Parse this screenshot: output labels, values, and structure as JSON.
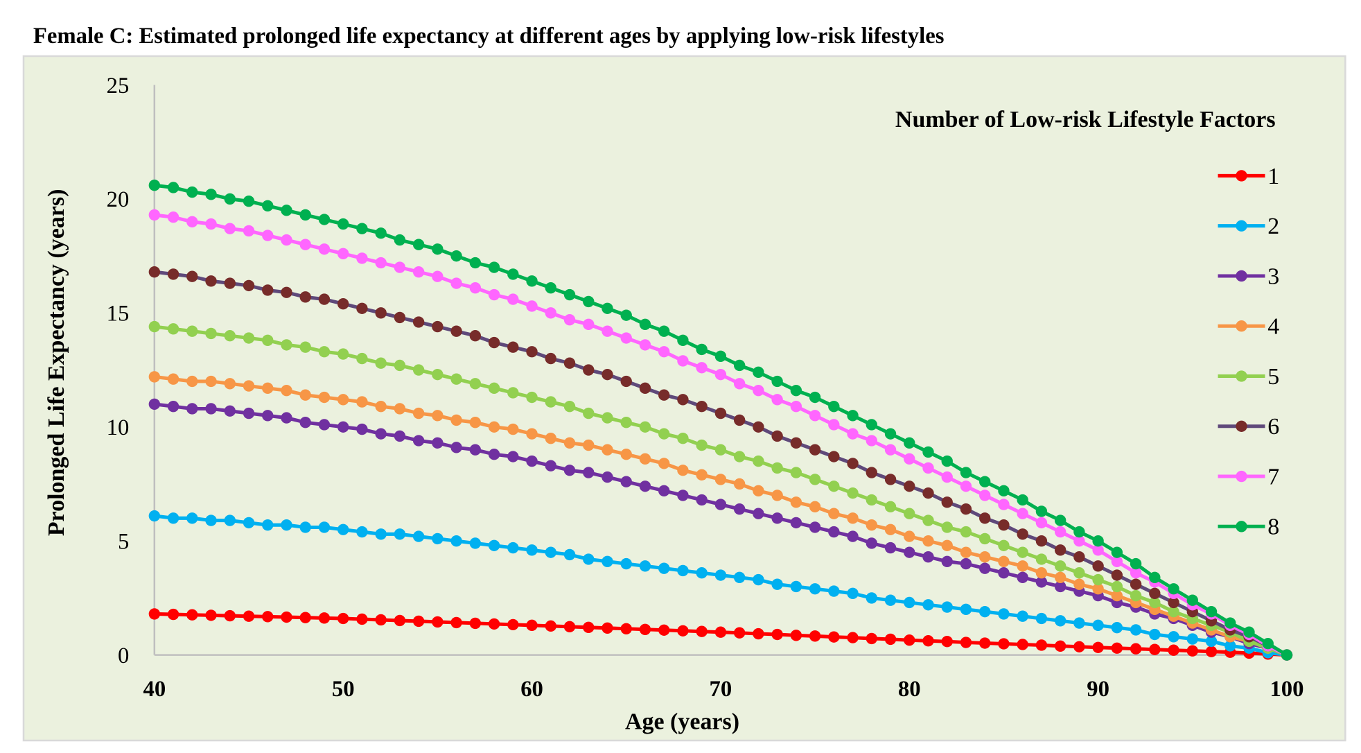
{
  "chart_data": {
    "type": "line",
    "title": "Female C: Estimated prolonged life expectancy at different ages by applying low-risk lifestyles",
    "xlabel": "Age (years)",
    "ylabel": "Prolonged Life Expectancy (years)",
    "xlim": [
      40,
      100
    ],
    "ylim": [
      0,
      25
    ],
    "xticks": [
      40,
      50,
      60,
      70,
      80,
      90,
      100
    ],
    "yticks": [
      0,
      5,
      10,
      15,
      20,
      25
    ],
    "grid": false,
    "legend_title": "Number of Low-risk Lifestyle Factors",
    "legend_position": "top-right",
    "x": [
      40,
      41,
      42,
      43,
      44,
      45,
      46,
      47,
      48,
      49,
      50,
      51,
      52,
      53,
      54,
      55,
      56,
      57,
      58,
      59,
      60,
      61,
      62,
      63,
      64,
      65,
      66,
      67,
      68,
      69,
      70,
      71,
      72,
      73,
      74,
      75,
      76,
      77,
      78,
      79,
      80,
      81,
      82,
      83,
      84,
      85,
      86,
      87,
      88,
      89,
      90,
      91,
      92,
      93,
      94,
      95,
      96,
      97,
      98,
      99,
      100
    ],
    "series": [
      {
        "name": "1",
        "color": "#ff0000",
        "line_color": "#ff0000",
        "values": [
          1.8,
          1.78,
          1.76,
          1.74,
          1.72,
          1.7,
          1.68,
          1.66,
          1.64,
          1.62,
          1.6,
          1.57,
          1.54,
          1.51,
          1.48,
          1.45,
          1.42,
          1.39,
          1.36,
          1.33,
          1.3,
          1.27,
          1.24,
          1.21,
          1.18,
          1.15,
          1.12,
          1.09,
          1.06,
          1.03,
          1.0,
          0.97,
          0.93,
          0.9,
          0.86,
          0.83,
          0.79,
          0.76,
          0.72,
          0.69,
          0.65,
          0.62,
          0.59,
          0.55,
          0.52,
          0.49,
          0.46,
          0.43,
          0.39,
          0.36,
          0.33,
          0.3,
          0.27,
          0.24,
          0.21,
          0.18,
          0.15,
          0.12,
          0.08,
          0.04,
          0
        ]
      },
      {
        "name": "2",
        "color": "#00b0f0",
        "line_color": "#00b0f0",
        "values": [
          6.1,
          6.0,
          6.0,
          5.9,
          5.9,
          5.8,
          5.7,
          5.7,
          5.6,
          5.6,
          5.5,
          5.4,
          5.3,
          5.3,
          5.2,
          5.1,
          5.0,
          4.9,
          4.8,
          4.7,
          4.6,
          4.5,
          4.4,
          4.2,
          4.1,
          4.0,
          3.9,
          3.8,
          3.7,
          3.6,
          3.5,
          3.4,
          3.3,
          3.1,
          3.0,
          2.9,
          2.8,
          2.7,
          2.5,
          2.4,
          2.3,
          2.2,
          2.1,
          2.0,
          1.9,
          1.8,
          1.7,
          1.6,
          1.5,
          1.4,
          1.3,
          1.2,
          1.1,
          0.9,
          0.8,
          0.7,
          0.6,
          0.4,
          0.3,
          0.1,
          0
        ]
      },
      {
        "name": "3",
        "color": "#7030a0",
        "line_color": "#7030a0",
        "values": [
          11.0,
          10.9,
          10.8,
          10.8,
          10.7,
          10.6,
          10.5,
          10.4,
          10.2,
          10.1,
          10.0,
          9.9,
          9.7,
          9.6,
          9.4,
          9.3,
          9.1,
          9.0,
          8.8,
          8.7,
          8.5,
          8.3,
          8.1,
          8.0,
          7.8,
          7.6,
          7.4,
          7.2,
          7.0,
          6.8,
          6.6,
          6.4,
          6.2,
          6.0,
          5.8,
          5.6,
          5.4,
          5.2,
          4.9,
          4.7,
          4.5,
          4.3,
          4.1,
          4.0,
          3.8,
          3.6,
          3.4,
          3.2,
          3.0,
          2.8,
          2.6,
          2.3,
          2.1,
          1.8,
          1.6,
          1.3,
          1.0,
          0.8,
          0.5,
          0.3,
          0
        ]
      },
      {
        "name": "4",
        "color": "#f79646",
        "line_color": "#f79646",
        "values": [
          12.2,
          12.1,
          12.0,
          12.0,
          11.9,
          11.8,
          11.7,
          11.6,
          11.4,
          11.3,
          11.2,
          11.1,
          10.9,
          10.8,
          10.6,
          10.5,
          10.3,
          10.2,
          10.0,
          9.9,
          9.7,
          9.5,
          9.3,
          9.2,
          9.0,
          8.8,
          8.6,
          8.4,
          8.1,
          7.9,
          7.7,
          7.5,
          7.2,
          7.0,
          6.7,
          6.5,
          6.2,
          6.0,
          5.7,
          5.5,
          5.2,
          5.0,
          4.8,
          4.5,
          4.3,
          4.1,
          3.9,
          3.6,
          3.4,
          3.1,
          2.9,
          2.6,
          2.3,
          2.0,
          1.7,
          1.4,
          1.1,
          0.8,
          0.6,
          0.3,
          0
        ]
      },
      {
        "name": "5",
        "color": "#92d050",
        "line_color": "#92d050",
        "values": [
          14.4,
          14.3,
          14.2,
          14.1,
          14.0,
          13.9,
          13.8,
          13.6,
          13.5,
          13.3,
          13.2,
          13.0,
          12.8,
          12.7,
          12.5,
          12.3,
          12.1,
          11.9,
          11.7,
          11.5,
          11.3,
          11.1,
          10.9,
          10.6,
          10.4,
          10.2,
          10.0,
          9.7,
          9.5,
          9.2,
          9.0,
          8.7,
          8.5,
          8.2,
          8.0,
          7.7,
          7.4,
          7.1,
          6.8,
          6.5,
          6.2,
          5.9,
          5.6,
          5.4,
          5.1,
          4.8,
          4.5,
          4.2,
          3.9,
          3.6,
          3.3,
          3.0,
          2.6,
          2.3,
          1.9,
          1.6,
          1.3,
          1.0,
          0.6,
          0.3,
          0
        ]
      },
      {
        "name": "6",
        "color": "#772c2a",
        "line_color": "#5f497a",
        "values": [
          16.8,
          16.7,
          16.6,
          16.4,
          16.3,
          16.2,
          16.0,
          15.9,
          15.7,
          15.6,
          15.4,
          15.2,
          15.0,
          14.8,
          14.6,
          14.4,
          14.2,
          14.0,
          13.7,
          13.5,
          13.3,
          13.0,
          12.8,
          12.5,
          12.3,
          12.0,
          11.7,
          11.4,
          11.2,
          10.9,
          10.6,
          10.3,
          10.0,
          9.6,
          9.3,
          9.0,
          8.7,
          8.4,
          8.0,
          7.7,
          7.4,
          7.1,
          6.7,
          6.4,
          6.0,
          5.7,
          5.3,
          5.0,
          4.6,
          4.3,
          3.9,
          3.5,
          3.1,
          2.7,
          2.3,
          1.9,
          1.5,
          1.1,
          0.8,
          0.4,
          0
        ]
      },
      {
        "name": "7",
        "color": "#ff66ff",
        "line_color": "#ff66ff",
        "values": [
          19.3,
          19.2,
          19.0,
          18.9,
          18.7,
          18.6,
          18.4,
          18.2,
          18.0,
          17.8,
          17.6,
          17.4,
          17.2,
          17.0,
          16.8,
          16.6,
          16.3,
          16.1,
          15.8,
          15.6,
          15.3,
          15.0,
          14.7,
          14.5,
          14.2,
          13.9,
          13.6,
          13.3,
          12.9,
          12.6,
          12.3,
          11.9,
          11.6,
          11.2,
          10.9,
          10.5,
          10.1,
          9.7,
          9.4,
          9.0,
          8.6,
          8.2,
          7.8,
          7.4,
          7.0,
          6.6,
          6.2,
          5.8,
          5.4,
          5.0,
          4.6,
          4.1,
          3.6,
          3.2,
          2.7,
          2.2,
          1.8,
          1.3,
          0.9,
          0.4,
          0
        ]
      },
      {
        "name": "8",
        "color": "#00b050",
        "line_color": "#00b050",
        "values": [
          20.6,
          20.5,
          20.3,
          20.2,
          20.0,
          19.9,
          19.7,
          19.5,
          19.3,
          19.1,
          18.9,
          18.7,
          18.5,
          18.2,
          18.0,
          17.8,
          17.5,
          17.2,
          17.0,
          16.7,
          16.4,
          16.1,
          15.8,
          15.5,
          15.2,
          14.9,
          14.5,
          14.2,
          13.8,
          13.4,
          13.1,
          12.7,
          12.4,
          12.0,
          11.6,
          11.3,
          10.9,
          10.5,
          10.1,
          9.7,
          9.3,
          8.9,
          8.5,
          8.0,
          7.6,
          7.2,
          6.8,
          6.3,
          5.9,
          5.4,
          5.0,
          4.5,
          4.0,
          3.4,
          2.9,
          2.4,
          1.9,
          1.4,
          1.0,
          0.5,
          0
        ]
      }
    ]
  },
  "colors": {
    "plot_background": "#ebf1de",
    "axis": "#bfbfbf"
  }
}
